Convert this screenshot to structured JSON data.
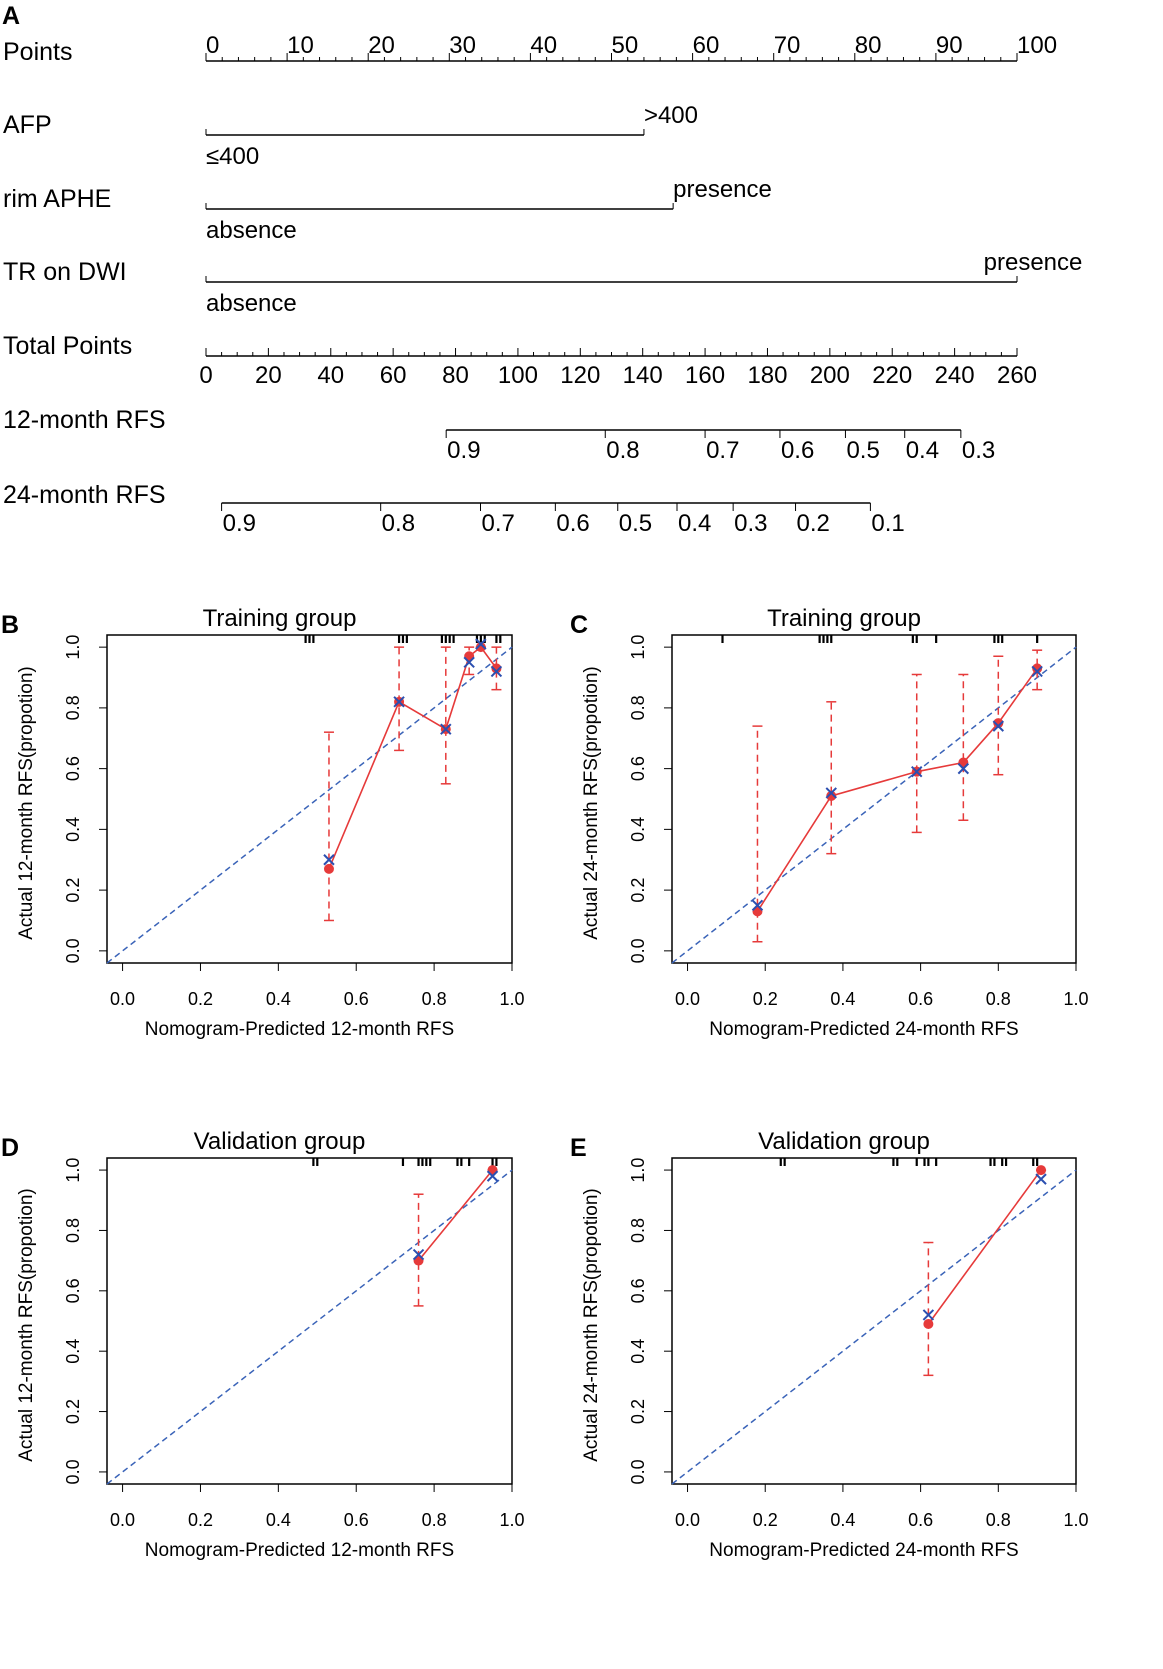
{
  "chart_data": [
    {
      "type": "nomogram",
      "panel": "A",
      "rows": [
        {
          "label": "Points",
          "kind": "axis",
          "min": 0,
          "max": 100,
          "ticks": [
            0,
            10,
            20,
            30,
            40,
            50,
            60,
            70,
            80,
            90,
            100
          ]
        },
        {
          "label": "AFP",
          "kind": "variable",
          "levels": [
            {
              "text": "≤400",
              "points": 0
            },
            {
              "text": ">400",
              "points": 54
            }
          ]
        },
        {
          "label": "rim APHE",
          "kind": "variable",
          "levels": [
            {
              "text": "absence",
              "points": 0
            },
            {
              "text": "presence",
              "points": 57.6
            }
          ]
        },
        {
          "label": "TR on DWI",
          "kind": "variable",
          "levels": [
            {
              "text": "absence",
              "points": 0
            },
            {
              "text": "presence",
              "points": 100
            }
          ]
        },
        {
          "label": "Total Points",
          "kind": "axis",
          "min": 0,
          "max": 260,
          "ticks": [
            0,
            20,
            40,
            60,
            80,
            100,
            120,
            140,
            160,
            180,
            200,
            220,
            240,
            260
          ]
        },
        {
          "label": "12-month RFS",
          "kind": "prob",
          "ticks": [
            {
              "text": "0.9",
              "total": 77
            },
            {
              "text": "0.8",
              "total": 128
            },
            {
              "text": "0.7",
              "total": 160
            },
            {
              "text": "0.6",
              "total": 184
            },
            {
              "text": "0.5",
              "total": 205
            },
            {
              "text": "0.4",
              "total": 224
            },
            {
              "text": "0.3",
              "total": 242
            }
          ]
        },
        {
          "label": "24-month RFS",
          "kind": "prob",
          "ticks": [
            {
              "text": "0.9",
              "total": 5
            },
            {
              "text": "0.8",
              "total": 56
            },
            {
              "text": "0.7",
              "total": 88
            },
            {
              "text": "0.6",
              "total": 112
            },
            {
              "text": "0.5",
              "total": 132
            },
            {
              "text": "0.4",
              "total": 151
            },
            {
              "text": "0.3",
              "total": 169
            },
            {
              "text": "0.2",
              "total": 189
            },
            {
              "text": "0.1",
              "total": 213
            }
          ]
        }
      ]
    },
    {
      "type": "calibration",
      "panel": "B",
      "title": "Training group",
      "xlabel": "Nomogram-Predicted 12-month RFS",
      "ylabel": "Actual 12-month RFS(propotion)",
      "xlim": [
        -0.04,
        1.0
      ],
      "ylim": [
        -0.04,
        1.04
      ],
      "ticks": [
        "0.0",
        "0.2",
        "0.4",
        "0.6",
        "0.8",
        "1.0"
      ],
      "x": [
        0.53,
        0.71,
        0.83,
        0.89,
        0.92,
        0.96
      ],
      "observed": [
        0.27,
        0.82,
        0.73,
        0.97,
        1.0,
        0.93
      ],
      "bias_corrected": [
        0.3,
        0.82,
        0.73,
        0.95,
        1.01,
        0.92
      ],
      "ci_low": [
        0.1,
        0.66,
        0.55,
        0.91,
        1.0,
        0.86
      ],
      "ci_high": [
        0.72,
        1.0,
        1.0,
        1.0,
        1.0,
        1.0
      ],
      "rug": [
        0.47,
        0.48,
        0.49,
        0.71,
        0.72,
        0.73,
        0.82,
        0.83,
        0.84,
        0.85,
        0.91,
        0.92,
        0.93,
        0.96,
        0.97
      ]
    },
    {
      "type": "calibration",
      "panel": "C",
      "title": "Training group",
      "xlabel": "Nomogram-Predicted 24-month RFS",
      "ylabel": "Actual 24-month RFS(propotion)",
      "xlim": [
        -0.04,
        1.0
      ],
      "ylim": [
        -0.04,
        1.04
      ],
      "ticks": [
        "0.0",
        "0.2",
        "0.4",
        "0.6",
        "0.8",
        "1.0"
      ],
      "x": [
        0.18,
        0.37,
        0.59,
        0.71,
        0.8,
        0.9
      ],
      "observed": [
        0.13,
        0.51,
        0.59,
        0.62,
        0.75,
        0.93
      ],
      "bias_corrected": [
        0.15,
        0.52,
        0.59,
        0.6,
        0.74,
        0.92
      ],
      "ci_low": [
        0.03,
        0.32,
        0.39,
        0.43,
        0.58,
        0.86
      ],
      "ci_high": [
        0.74,
        0.82,
        0.91,
        0.91,
        0.97,
        0.99
      ],
      "rug": [
        0.09,
        0.34,
        0.35,
        0.36,
        0.37,
        0.58,
        0.59,
        0.64,
        0.79,
        0.8,
        0.81,
        0.9
      ]
    },
    {
      "type": "calibration",
      "panel": "D",
      "title": "Validation group",
      "xlabel": "Nomogram-Predicted 12-month RFS",
      "ylabel": "Actual 12-month RFS(propotion)",
      "xlim": [
        -0.04,
        1.0
      ],
      "ylim": [
        -0.04,
        1.04
      ],
      "ticks": [
        "0.0",
        "0.2",
        "0.4",
        "0.6",
        "0.8",
        "1.0"
      ],
      "x": [
        0.76,
        0.95
      ],
      "observed": [
        0.7,
        1.0
      ],
      "bias_corrected": [
        0.72,
        0.98
      ],
      "ci_low": [
        0.55,
        1.0
      ],
      "ci_high": [
        0.92,
        1.0
      ],
      "rug": [
        0.49,
        0.5,
        0.72,
        0.76,
        0.77,
        0.78,
        0.79,
        0.86,
        0.87,
        0.89,
        0.95,
        0.96
      ]
    },
    {
      "type": "calibration",
      "panel": "E",
      "title": "Validation group",
      "xlabel": "Nomogram-Predicted 24-month RFS",
      "ylabel": "Actual 24-month RFS(propotion)",
      "xlim": [
        -0.04,
        1.0
      ],
      "ylim": [
        -0.04,
        1.04
      ],
      "ticks": [
        "0.0",
        "0.2",
        "0.4",
        "0.6",
        "0.8",
        "1.0"
      ],
      "x": [
        0.62,
        0.91
      ],
      "observed": [
        0.49,
        1.0
      ],
      "bias_corrected": [
        0.52,
        0.97
      ],
      "ci_low": [
        0.32,
        1.0
      ],
      "ci_high": [
        0.76,
        1.0
      ],
      "rug": [
        0.24,
        0.25,
        0.53,
        0.54,
        0.59,
        0.61,
        0.62,
        0.64,
        0.78,
        0.79,
        0.81,
        0.82,
        0.89,
        0.9
      ]
    }
  ]
}
